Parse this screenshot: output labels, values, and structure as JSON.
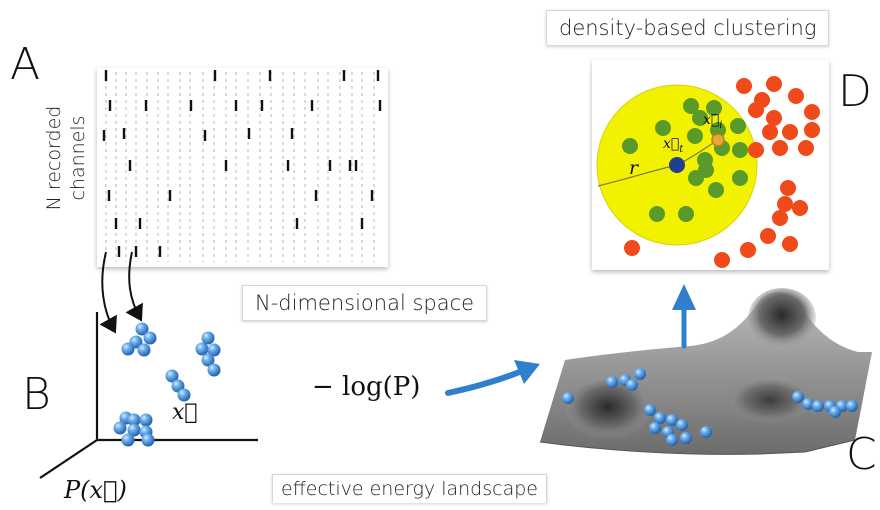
{
  "panels": {
    "a": {
      "letter": "A",
      "ylabel_line1": "N recorded",
      "ylabel_line2": "channels"
    },
    "b": {
      "letter": "B",
      "point_label": "x⃗",
      "axis_label": "P(x⃗)"
    },
    "c": {
      "letter": "C",
      "potential_label": "− log(P)"
    },
    "d": {
      "letter": "D",
      "radius_label": "r",
      "center_label": "x⃗",
      "center_sub": "t",
      "neighbor_label": "x⃗",
      "neighbor_sub": "i"
    }
  },
  "labels": {
    "clustering": "density-based clustering",
    "space": "N-dimensional space",
    "landscape": "effective energy landscape"
  },
  "colors": {
    "background": "#ffffff",
    "sphere_blue": "#3b86cf",
    "arrow_blue": "#2f7fcc",
    "yellow_circle": "#f2f200",
    "green_points": "#5a9a2a",
    "red_points": "#f04a1a",
    "center_point": "#1f3f8f"
  }
}
